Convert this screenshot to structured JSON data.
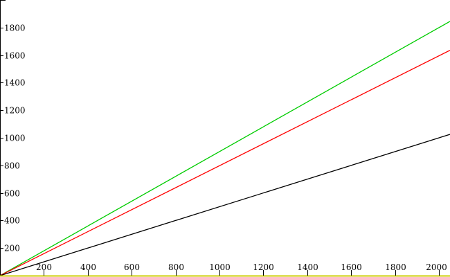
{
  "chart_data": {
    "type": "line",
    "title": "",
    "xlabel": "",
    "ylabel": "",
    "xlim": [
      0,
      2050
    ],
    "ylim": [
      0,
      2000
    ],
    "grid": false,
    "legend": "none",
    "x_ticks": [
      200,
      400,
      600,
      800,
      1000,
      1200,
      1400,
      1600,
      1800,
      2000
    ],
    "x_tick_labels": [
      "200",
      "400",
      "600",
      "800",
      "1000",
      "1200",
      "1400",
      "1600",
      "1800",
      "2000"
    ],
    "y_ticks": [
      200,
      400,
      600,
      800,
      1000,
      1200,
      1400,
      1600,
      1800
    ],
    "y_tick_labels": [
      "200",
      "400",
      "600",
      "800",
      "1000",
      "1200",
      "1400",
      "1600",
      "1800"
    ],
    "series": [
      {
        "color": "#00cc00",
        "x": [
          0,
          2050
        ],
        "y": [
          0,
          1845
        ]
      },
      {
        "color": "#ff0000",
        "x": [
          0,
          2050
        ],
        "y": [
          0,
          1635
        ]
      },
      {
        "color": "#000000",
        "x": [
          0,
          2050
        ],
        "y": [
          0,
          1025
        ]
      }
    ],
    "baseline": {
      "color": "#cccc00",
      "y": 0
    }
  }
}
